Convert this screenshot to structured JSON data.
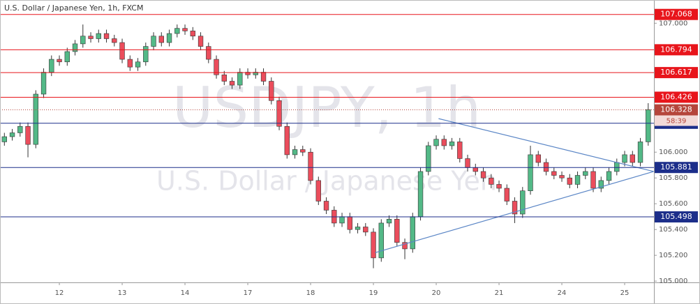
{
  "chart_data": {
    "type": "candlestick",
    "title": "U.S. Dollar / Japanese Yen, 1h, FXCM",
    "watermark": "USDJPY, 1h",
    "watermark_subtitle": "U.S. Dollar / Japanese Yen",
    "xlim": [
      -0.56,
      82.73
    ],
    "ylim": [
      104.99,
      107.18
    ],
    "xticks": [
      {
        "value": 7,
        "label": "12"
      },
      {
        "value": 15,
        "label": "13"
      },
      {
        "value": 23,
        "label": "14"
      },
      {
        "value": 31,
        "label": "17"
      },
      {
        "value": 39,
        "label": "18"
      },
      {
        "value": 47,
        "label": "19"
      },
      {
        "value": 55,
        "label": "20"
      },
      {
        "value": 63,
        "label": "21"
      },
      {
        "value": 71,
        "label": "24"
      },
      {
        "value": 79,
        "label": "25"
      }
    ],
    "yticks": [
      {
        "value": 105,
        "label": "105.000"
      },
      {
        "value": 105.2,
        "label": "105.200"
      },
      {
        "value": 105.4,
        "label": "105.400"
      },
      {
        "value": 105.6,
        "label": "105.600"
      },
      {
        "value": 105.8,
        "label": "105.800"
      },
      {
        "value": 106,
        "label": "106.000"
      },
      {
        "value": 106.2,
        "label": "106.200"
      },
      {
        "value": 106.4,
        "label": "106.400"
      },
      {
        "value": 106.6,
        "label": "106.600"
      },
      {
        "value": 106.8,
        "label": "106.800"
      },
      {
        "value": 107,
        "label": "107.000"
      }
    ],
    "up_color": "#53b987",
    "down_color": "#eb4d5c",
    "open": [
      106.08,
      106.12,
      106.15,
      106.2,
      106.06,
      106.45,
      106.62,
      106.72,
      106.7,
      106.78,
      106.84,
      106.9,
      106.88,
      106.92,
      106.88,
      106.85,
      106.72,
      106.66,
      106.7,
      106.82,
      106.9,
      106.85,
      106.92,
      106.96,
      106.94,
      106.9,
      106.82,
      106.72,
      106.6,
      106.55,
      106.52,
      106.62,
      106.6,
      106.62,
      106.55,
      106.4,
      106.2,
      105.98,
      106.02,
      106.0,
      105.78,
      105.62,
      105.55,
      105.45,
      105.5,
      105.4,
      105.42,
      105.38,
      105.18,
      105.45,
      105.48,
      105.3,
      105.25,
      105.5,
      105.85,
      106.05,
      106.1,
      106.05,
      106.08,
      105.95,
      105.88,
      105.85,
      105.8,
      105.75,
      105.72,
      105.62,
      105.52,
      105.7,
      105.98,
      105.92,
      105.85,
      105.82,
      105.8,
      105.75,
      105.82,
      105.85,
      105.72,
      105.78,
      105.85,
      105.92,
      105.98,
      105.92,
      106.08
    ],
    "high": [
      106.15,
      106.18,
      106.23,
      106.23,
      106.48,
      106.65,
      106.75,
      106.75,
      106.81,
      106.87,
      106.99,
      106.93,
      106.95,
      106.95,
      106.91,
      106.88,
      106.75,
      106.73,
      106.85,
      106.93,
      106.93,
      106.95,
      106.99,
      106.99,
      106.97,
      106.93,
      106.85,
      106.75,
      106.63,
      106.58,
      106.65,
      106.65,
      106.65,
      106.65,
      106.58,
      106.43,
      106.23,
      106.05,
      106.05,
      106.03,
      105.81,
      105.65,
      105.58,
      105.53,
      105.53,
      105.45,
      105.45,
      105.41,
      105.48,
      105.51,
      105.51,
      105.33,
      105.53,
      105.88,
      106.08,
      106.13,
      106.13,
      106.11,
      106.11,
      105.98,
      105.91,
      105.88,
      105.83,
      105.78,
      105.75,
      105.65,
      105.73,
      106.05,
      106.01,
      105.95,
      105.88,
      105.85,
      105.83,
      105.85,
      105.88,
      105.88,
      105.81,
      105.88,
      105.95,
      106.01,
      106.01,
      106.11,
      106.38
    ],
    "low": [
      106.05,
      106.09,
      106.12,
      105.96,
      106.03,
      106.42,
      106.59,
      106.67,
      106.67,
      106.75,
      106.81,
      106.85,
      106.85,
      106.85,
      106.82,
      106.69,
      106.63,
      106.63,
      106.67,
      106.79,
      106.82,
      106.82,
      106.89,
      106.91,
      106.87,
      106.79,
      106.69,
      106.57,
      106.52,
      106.49,
      106.49,
      106.57,
      106.57,
      106.52,
      106.37,
      106.17,
      105.95,
      105.95,
      105.97,
      105.75,
      105.59,
      105.52,
      105.42,
      105.42,
      105.37,
      105.37,
      105.35,
      105.1,
      105.15,
      105.42,
      105.27,
      105.17,
      105.22,
      105.47,
      105.82,
      106.02,
      106.02,
      106.02,
      105.92,
      105.85,
      105.82,
      105.77,
      105.72,
      105.69,
      105.59,
      105.45,
      105.49,
      105.67,
      105.89,
      105.82,
      105.79,
      105.77,
      105.72,
      105.72,
      105.79,
      105.69,
      105.69,
      105.75,
      105.82,
      105.89,
      105.89,
      105.89,
      106.05
    ],
    "close": [
      106.12,
      106.15,
      106.2,
      106.06,
      106.45,
      106.62,
      106.72,
      106.7,
      106.78,
      106.84,
      106.9,
      106.88,
      106.92,
      106.88,
      106.85,
      106.72,
      106.66,
      106.7,
      106.82,
      106.9,
      106.85,
      106.92,
      106.96,
      106.94,
      106.9,
      106.82,
      106.72,
      106.6,
      106.55,
      106.52,
      106.62,
      106.6,
      106.62,
      106.55,
      106.4,
      106.2,
      105.98,
      106.02,
      106.0,
      105.78,
      105.62,
      105.55,
      105.45,
      105.5,
      105.4,
      105.42,
      105.38,
      105.18,
      105.45,
      105.48,
      105.3,
      105.25,
      105.5,
      105.85,
      106.05,
      106.1,
      106.05,
      106.08,
      105.95,
      105.88,
      105.85,
      105.8,
      105.75,
      105.72,
      105.62,
      105.52,
      105.7,
      105.98,
      105.92,
      105.85,
      105.82,
      105.8,
      105.75,
      105.82,
      105.85,
      105.72,
      105.78,
      105.85,
      105.92,
      105.98,
      105.92,
      106.08,
      106.33
    ],
    "levels": [
      {
        "value": 107.068,
        "color": "#e8151b"
      },
      {
        "value": 106.794,
        "color": "#e8151b"
      },
      {
        "value": 106.617,
        "color": "#e8151b"
      },
      {
        "value": 106.426,
        "color": "#e8151b"
      },
      {
        "value": 106.224,
        "color": "#1c2e8a"
      },
      {
        "value": 105.881,
        "color": "#1c2e8a"
      },
      {
        "value": 105.498,
        "color": "#1c2e8a"
      }
    ],
    "current_price": 106.328,
    "current_color": "#b5453b",
    "countdown": "58:39",
    "trendline_color": "#5b86c6",
    "trendlines": [
      {
        "x": [
          55.3,
          82.7
        ],
        "y": [
          106.26,
          105.85
        ]
      },
      {
        "x": [
          47.2,
          82.7
        ],
        "y": [
          105.22,
          105.85
        ]
      }
    ]
  }
}
